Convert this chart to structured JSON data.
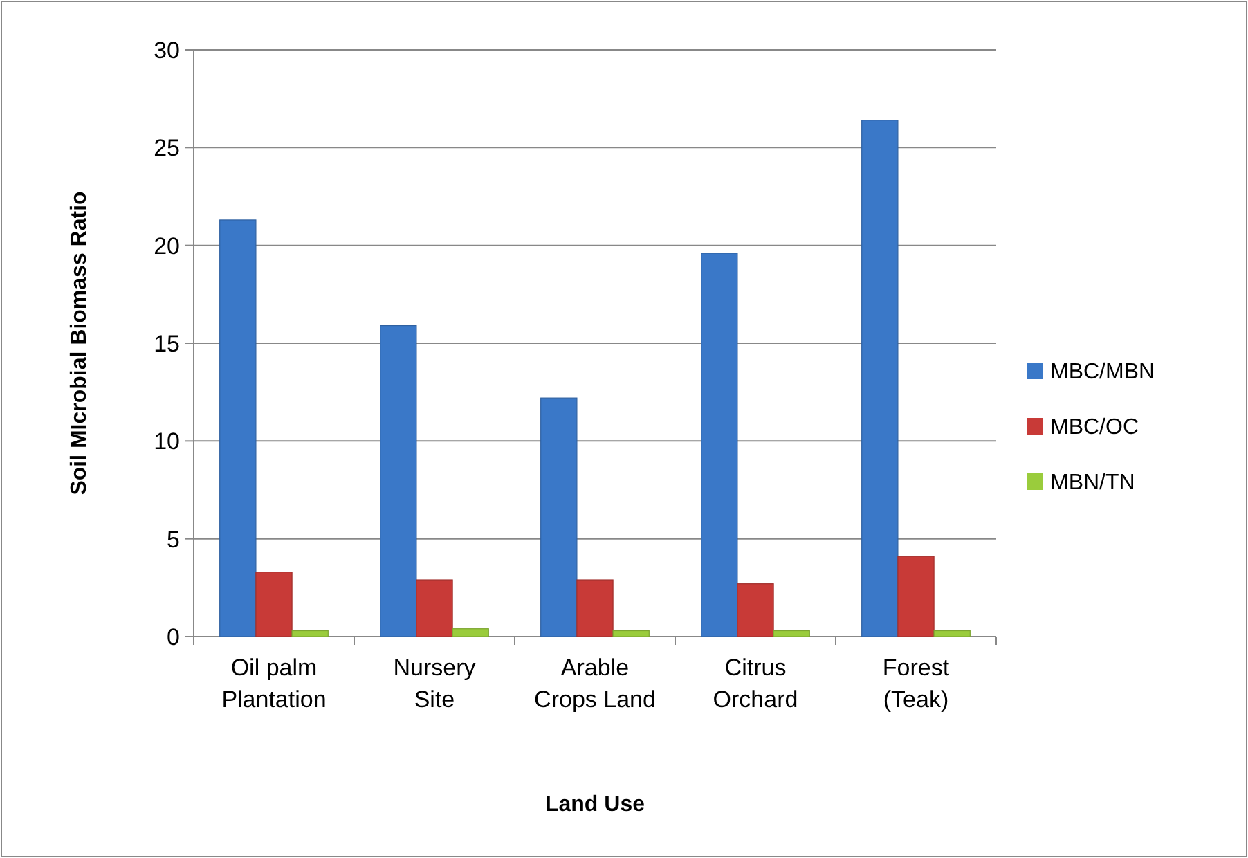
{
  "chart_data": {
    "type": "bar",
    "xlabel": "Land Use",
    "ylabel": "Soil MIcrobial Biomass Ratio",
    "categories": [
      "Oil palm Plantation",
      "Nursery Site",
      "Arable Crops Land",
      "Citrus Orchard",
      "Forest (Teak)"
    ],
    "series": [
      {
        "name": "MBC/MBN",
        "color": "#3a78c8",
        "values": [
          21.3,
          15.9,
          12.2,
          19.6,
          26.4
        ]
      },
      {
        "name": "MBC/OC",
        "color": "#c83a37",
        "values": [
          3.3,
          2.9,
          2.9,
          2.7,
          4.1
        ]
      },
      {
        "name": "MBN/TN",
        "color": "#9acc3c",
        "values": [
          0.3,
          0.4,
          0.3,
          0.3,
          0.3
        ]
      }
    ],
    "ylim": [
      0,
      30
    ],
    "yticks": [
      0,
      5,
      10,
      15,
      20,
      25,
      30
    ],
    "grid": "y",
    "legend": "right"
  }
}
